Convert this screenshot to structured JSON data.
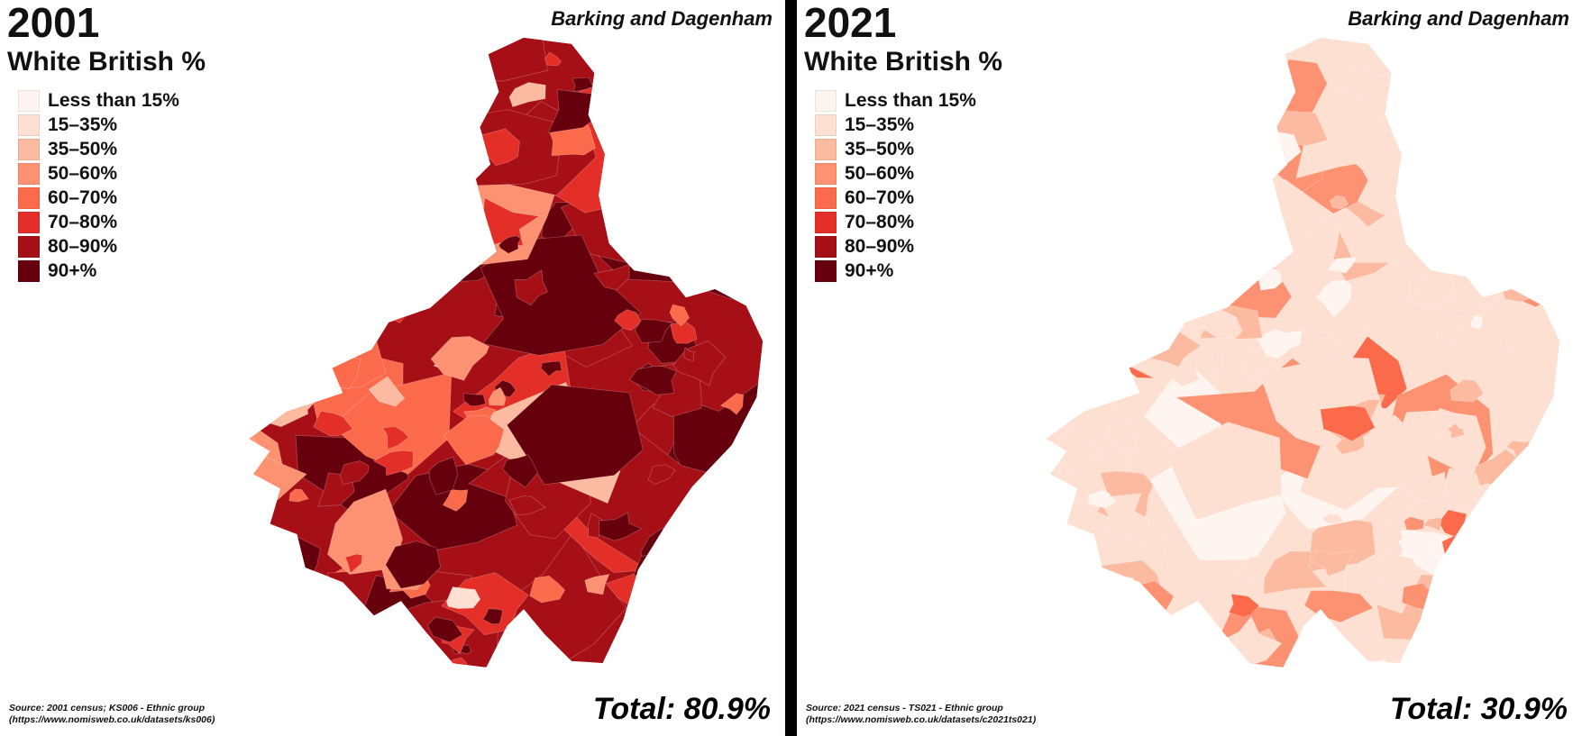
{
  "legend": {
    "items": [
      {
        "label": "Less than 15%",
        "color": "#fff5f0"
      },
      {
        "label": "15–35%",
        "color": "#fee0d2"
      },
      {
        "label": "35–50%",
        "color": "#fcbba1"
      },
      {
        "label": "50–60%",
        "color": "#fc9272"
      },
      {
        "label": "60–70%",
        "color": "#fb6a4a"
      },
      {
        "label": "70–80%",
        "color": "#e32f27"
      },
      {
        "label": "80–90%",
        "color": "#a50f15"
      },
      {
        "label": "90+%",
        "color": "#67000d"
      }
    ]
  },
  "panels": [
    {
      "year": "2001",
      "region_label": "Barking and Dagenham",
      "legend_title": "White British %",
      "total": "Total: 80.9%",
      "source_line1": "Source: 2001 census; KS006 - Ethnic group",
      "source_line2": "(https://www.nomisweb.co.uk/datasets/ks006)",
      "map": {
        "seed": 20011,
        "patches": 180,
        "base_class": 6,
        "weights_west": [
          1,
          4,
          10,
          12,
          14,
          22,
          10,
          4
        ],
        "weights_east": [
          0,
          0,
          0.5,
          1,
          3,
          16,
          30,
          44
        ]
      }
    },
    {
      "year": "2021",
      "region_label": "Barking and Dagenham",
      "legend_title": "White British %",
      "total": "Total: 30.9%",
      "source_line1": "Source: 2021 census - TS021 - Ethnic group",
      "source_line2": "(https://www.nomisweb.co.uk/datasets/c2021ts021)",
      "map": {
        "seed": 20212,
        "patches": 180,
        "base_class": 1,
        "weights_west": [
          30,
          52,
          12,
          4,
          1,
          0,
          0,
          0
        ],
        "weights_east": [
          3,
          42,
          30,
          18,
          6,
          1,
          0,
          0
        ]
      }
    }
  ]
}
